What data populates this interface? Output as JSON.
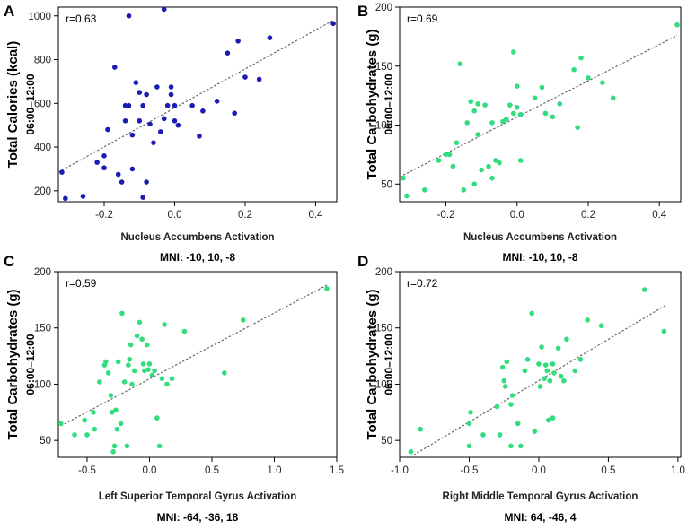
{
  "chart_data": [
    {
      "type": "scatter",
      "panel": "A",
      "r_label": "r=0.63",
      "ylabel": "Total Calories (kcal)",
      "ylabel_sub": "06:00–12:00",
      "xlabel": "Nucleus Accumbens Activation",
      "mni": "MNI: -10, 10, -8",
      "xlim": [
        -0.33,
        0.46
      ],
      "ylim": [
        150,
        1040
      ],
      "xticks": [
        -0.2,
        0.0,
        0.2,
        0.4
      ],
      "xtick_labels": [
        "-0.2",
        "0.0",
        "0.2",
        "0.4"
      ],
      "yticks": [
        200,
        400,
        600,
        800,
        1000
      ],
      "ytick_labels": [
        "200",
        "400",
        "600",
        "800",
        "1000"
      ],
      "color": "#1c1cb4",
      "trend": [
        [
          -0.33,
          285
        ],
        [
          0.45,
          980
        ]
      ],
      "points": [
        [
          -0.32,
          285
        ],
        [
          -0.31,
          165
        ],
        [
          -0.26,
          175
        ],
        [
          -0.22,
          330
        ],
        [
          -0.2,
          305
        ],
        [
          -0.2,
          360
        ],
        [
          -0.19,
          480
        ],
        [
          -0.17,
          765
        ],
        [
          -0.16,
          275
        ],
        [
          -0.15,
          240
        ],
        [
          -0.14,
          590
        ],
        [
          -0.14,
          520
        ],
        [
          -0.13,
          1000
        ],
        [
          -0.13,
          590
        ],
        [
          -0.12,
          455
        ],
        [
          -0.12,
          300
        ],
        [
          -0.11,
          695
        ],
        [
          -0.1,
          650
        ],
        [
          -0.1,
          520
        ],
        [
          -0.09,
          170
        ],
        [
          -0.09,
          590
        ],
        [
          -0.08,
          240
        ],
        [
          -0.08,
          640
        ],
        [
          -0.07,
          505
        ],
        [
          -0.06,
          420
        ],
        [
          -0.05,
          675
        ],
        [
          -0.04,
          470
        ],
        [
          -0.03,
          530
        ],
        [
          -0.03,
          1030
        ],
        [
          -0.02,
          590
        ],
        [
          -0.01,
          640
        ],
        [
          -0.01,
          675
        ],
        [
          0.0,
          590
        ],
        [
          0.0,
          520
        ],
        [
          0.01,
          500
        ],
        [
          0.05,
          590
        ],
        [
          0.07,
          450
        ],
        [
          0.08,
          565
        ],
        [
          0.12,
          610
        ],
        [
          0.15,
          830
        ],
        [
          0.17,
          555
        ],
        [
          0.18,
          885
        ],
        [
          0.2,
          720
        ],
        [
          0.24,
          710
        ],
        [
          0.27,
          900
        ],
        [
          0.45,
          965
        ]
      ]
    },
    {
      "type": "scatter",
      "panel": "B",
      "r_label": "r=0.69",
      "ylabel": "Total Carbohydrates (g)",
      "ylabel_sub": "06:00–12:00",
      "xlabel": "Nucleus Accumbens Activation",
      "mni": "MNI: -10, 10, -8",
      "xlim": [
        -0.33,
        0.46
      ],
      "ylim": [
        35,
        200
      ],
      "xticks": [
        -0.2,
        0.0,
        0.2,
        0.4
      ],
      "xtick_labels": [
        "-0.2",
        "0.0",
        "0.2",
        "0.4"
      ],
      "yticks": [
        50,
        100,
        150,
        200
      ],
      "ytick_labels": [
        "50",
        "100",
        "150",
        "200"
      ],
      "color": "#33dd7e",
      "trend": [
        [
          -0.33,
          56
        ],
        [
          0.45,
          176
        ]
      ],
      "points": [
        [
          -0.32,
          55
        ],
        [
          -0.31,
          40
        ],
        [
          -0.26,
          45
        ],
        [
          -0.22,
          70
        ],
        [
          -0.2,
          75
        ],
        [
          -0.19,
          75
        ],
        [
          -0.18,
          65
        ],
        [
          -0.17,
          85
        ],
        [
          -0.16,
          152
        ],
        [
          -0.15,
          45
        ],
        [
          -0.14,
          102
        ],
        [
          -0.13,
          120
        ],
        [
          -0.12,
          50
        ],
        [
          -0.12,
          112
        ],
        [
          -0.11,
          118
        ],
        [
          -0.11,
          92
        ],
        [
          -0.1,
          62
        ],
        [
          -0.09,
          117
        ],
        [
          -0.08,
          65
        ],
        [
          -0.07,
          55
        ],
        [
          -0.07,
          102
        ],
        [
          -0.06,
          70
        ],
        [
          -0.05,
          68
        ],
        [
          -0.04,
          103
        ],
        [
          -0.03,
          105
        ],
        [
          -0.02,
          117
        ],
        [
          -0.01,
          162
        ],
        [
          -0.01,
          110
        ],
        [
          0.0,
          133
        ],
        [
          0.0,
          115
        ],
        [
          0.01,
          109
        ],
        [
          0.01,
          70
        ],
        [
          0.05,
          123
        ],
        [
          0.07,
          132
        ],
        [
          0.08,
          110
        ],
        [
          0.1,
          107
        ],
        [
          0.12,
          118
        ],
        [
          0.16,
          147
        ],
        [
          0.17,
          98
        ],
        [
          0.18,
          157
        ],
        [
          0.2,
          140
        ],
        [
          0.24,
          136
        ],
        [
          0.27,
          123
        ],
        [
          0.45,
          185
        ]
      ]
    },
    {
      "type": "scatter",
      "panel": "C",
      "r_label": "r=0.59",
      "ylabel": "Total Carbohydrates (g)",
      "ylabel_sub": "06:00–12:00",
      "xlabel": "Left Superior Temporal Gyrus Activation",
      "mni": "MNI: -64, -36, 18",
      "xlim": [
        -0.73,
        1.5
      ],
      "ylim": [
        35,
        200
      ],
      "xticks": [
        -0.5,
        0.0,
        0.5,
        1.0,
        1.5
      ],
      "xtick_labels": [
        "-0.5",
        "0.0",
        "0.5",
        "1.0",
        "1.5"
      ],
      "yticks": [
        50,
        100,
        150,
        200
      ],
      "ytick_labels": [
        "50",
        "100",
        "150",
        "200"
      ],
      "color": "#33dd7e",
      "trend": [
        [
          -0.71,
          63
        ],
        [
          1.42,
          188
        ]
      ],
      "points": [
        [
          -0.71,
          65
        ],
        [
          -0.6,
          55
        ],
        [
          -0.52,
          68
        ],
        [
          -0.5,
          55
        ],
        [
          -0.45,
          75
        ],
        [
          -0.44,
          60
        ],
        [
          -0.4,
          102
        ],
        [
          -0.36,
          117
        ],
        [
          -0.35,
          120
        ],
        [
          -0.33,
          110
        ],
        [
          -0.31,
          90
        ],
        [
          -0.3,
          75
        ],
        [
          -0.29,
          40
        ],
        [
          -0.28,
          45
        ],
        [
          -0.27,
          77
        ],
        [
          -0.26,
          60
        ],
        [
          -0.25,
          120
        ],
        [
          -0.23,
          65
        ],
        [
          -0.22,
          163
        ],
        [
          -0.2,
          102
        ],
        [
          -0.18,
          45
        ],
        [
          -0.17,
          117
        ],
        [
          -0.16,
          122
        ],
        [
          -0.15,
          135
        ],
        [
          -0.14,
          100
        ],
        [
          -0.12,
          112
        ],
        [
          -0.1,
          143
        ],
        [
          -0.08,
          155
        ],
        [
          -0.06,
          140
        ],
        [
          -0.05,
          118
        ],
        [
          -0.04,
          112
        ],
        [
          -0.02,
          135
        ],
        [
          -0.01,
          113
        ],
        [
          0.0,
          118
        ],
        [
          0.02,
          108
        ],
        [
          0.04,
          112
        ],
        [
          0.06,
          70
        ],
        [
          0.08,
          45
        ],
        [
          0.1,
          105
        ],
        [
          0.12,
          153
        ],
        [
          0.14,
          100
        ],
        [
          0.18,
          105
        ],
        [
          0.28,
          147
        ],
        [
          0.6,
          110
        ],
        [
          0.75,
          157
        ],
        [
          1.42,
          185
        ]
      ]
    },
    {
      "type": "scatter",
      "panel": "D",
      "r_label": "r=0.72",
      "ylabel": "Total Carbohydrates (g)",
      "ylabel_sub": "06:00–12:00",
      "xlabel": "Right Middle Temporal Gyrus Activation",
      "mni": "MNI: 64, -46, 4",
      "xlim": [
        -1.0,
        1.02
      ],
      "ylim": [
        35,
        200
      ],
      "xticks": [
        -1.0,
        -0.5,
        0.0,
        0.5,
        1.0
      ],
      "xtick_labels": [
        "-1.0",
        "-0.5",
        "0.0",
        "0.5",
        "1.0"
      ],
      "yticks": [
        50,
        100,
        150,
        200
      ],
      "ytick_labels": [
        "50",
        "100",
        "150",
        "200"
      ],
      "color": "#33dd7e",
      "trend": [
        [
          -0.9,
          37
        ],
        [
          0.91,
          170
        ]
      ],
      "points": [
        [
          -0.92,
          40
        ],
        [
          -0.85,
          60
        ],
        [
          -0.5,
          45
        ],
        [
          -0.5,
          65
        ],
        [
          -0.49,
          75
        ],
        [
          -0.4,
          55
        ],
        [
          -0.3,
          80
        ],
        [
          -0.28,
          55
        ],
        [
          -0.26,
          115
        ],
        [
          -0.25,
          103
        ],
        [
          -0.24,
          98
        ],
        [
          -0.23,
          120
        ],
        [
          -0.2,
          45
        ],
        [
          -0.2,
          82
        ],
        [
          -0.19,
          90
        ],
        [
          -0.15,
          65
        ],
        [
          -0.13,
          45
        ],
        [
          -0.1,
          112
        ],
        [
          -0.08,
          122
        ],
        [
          -0.05,
          163
        ],
        [
          -0.03,
          58
        ],
        [
          0.0,
          118
        ],
        [
          0.01,
          98
        ],
        [
          0.02,
          133
        ],
        [
          0.04,
          105
        ],
        [
          0.05,
          117
        ],
        [
          0.06,
          112
        ],
        [
          0.07,
          68
        ],
        [
          0.08,
          103
        ],
        [
          0.1,
          118
        ],
        [
          0.1,
          70
        ],
        [
          0.11,
          110
        ],
        [
          0.14,
          132
        ],
        [
          0.16,
          107
        ],
        [
          0.18,
          103
        ],
        [
          0.2,
          140
        ],
        [
          0.26,
          112
        ],
        [
          0.3,
          122
        ],
        [
          0.35,
          157
        ],
        [
          0.45,
          152
        ],
        [
          0.76,
          184
        ],
        [
          0.9,
          147
        ]
      ]
    }
  ]
}
